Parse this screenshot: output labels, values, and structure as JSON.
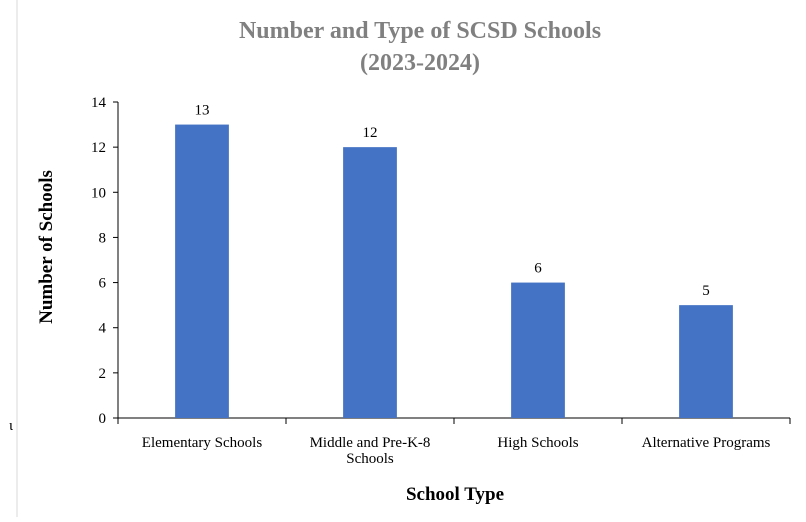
{
  "chart_data": {
    "type": "bar",
    "title": [
      "Number and Type of SCSD Schools",
      "(2023-2024)"
    ],
    "xlabel": "School Type",
    "ylabel": "Number of Schools",
    "categories": [
      [
        "Elementary Schools"
      ],
      [
        "Middle and Pre-K-8",
        "Schools"
      ],
      [
        "High Schools"
      ],
      [
        "Alternative Programs"
      ]
    ],
    "values": [
      13,
      12,
      6,
      5
    ],
    "data_labels": [
      "13",
      "12",
      "6",
      "5"
    ],
    "ylim": [
      0,
      14
    ],
    "yticks": [
      "0",
      "2",
      "4",
      "6",
      "8",
      "10",
      "12",
      "14"
    ],
    "grid": false,
    "legend": "none",
    "bar_color": "#4472C4",
    "title_color": "#808080"
  },
  "stray_text": "ι"
}
